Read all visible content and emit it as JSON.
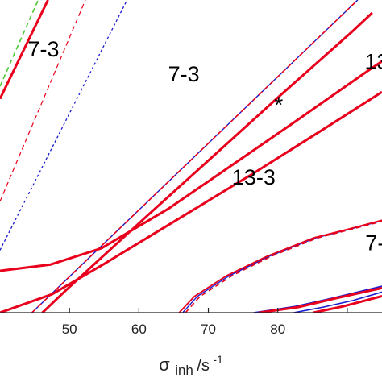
{
  "chart_data": {
    "type": "line",
    "xlabel": {
      "base": "σ",
      "subscript": "inh",
      "unit": " /s",
      "exponent": "-1"
    },
    "xlim": [
      40,
      95
    ],
    "ylim": [
      0,
      1
    ],
    "xticks": [
      50,
      60,
      70,
      80,
      90
    ],
    "xtick_labels": [
      "50",
      "60",
      "70",
      "80",
      ""
    ],
    "grid": false,
    "region_labels": [
      {
        "text": "7-3",
        "x": 44.0,
        "y": 0.82
      },
      {
        "text": "7-3",
        "x": 64.2,
        "y": 0.74
      },
      {
        "text": "13",
        "x": 92.5,
        "y": 0.78
      },
      {
        "text": "*",
        "x": 79.5,
        "y": 0.64
      },
      {
        "text": "13-3",
        "x": 73.4,
        "y": 0.41
      },
      {
        "text": "7-",
        "x": 92.6,
        "y": 0.2
      }
    ],
    "colors": {
      "red": "#e8001c",
      "blue": "#1a1ad0",
      "green": "#4cc832"
    },
    "series": [
      {
        "color": "#e8001c",
        "style": "solid",
        "width": 3,
        "points": [
          [
            40,
            0.684
          ],
          [
            46.9,
            1.0
          ]
        ]
      },
      {
        "color": "#4cc832",
        "style": "dashed",
        "width": 1.6,
        "points": [
          [
            40,
            0.724
          ],
          [
            45.5,
            1.0
          ]
        ]
      },
      {
        "color": "#e8001c",
        "style": "dashed",
        "width": 1.2,
        "points": [
          [
            40,
            0.356
          ],
          [
            52.3,
            1.0
          ]
        ]
      },
      {
        "color": "#1a1ad0",
        "style": "dotted",
        "width": 1.3,
        "points": [
          [
            40,
            0.2
          ],
          [
            58.3,
            1.0
          ]
        ]
      },
      {
        "color": "#1a1ad0",
        "style": "solid",
        "width": 1.4,
        "points": [
          [
            44.6,
            0.0
          ],
          [
            91.5,
            1.0
          ]
        ]
      },
      {
        "color": "#e8001c",
        "style": "dashed",
        "width": 1.6,
        "points": [
          [
            44.6,
            0.0
          ],
          [
            91.5,
            1.0
          ]
        ]
      },
      {
        "color": "#e8001c",
        "style": "solid",
        "width": 3,
        "points": [
          [
            40,
            0.0
          ],
          [
            47.5,
            0.059
          ],
          [
            54.9,
            0.155
          ],
          [
            65.1,
            0.292
          ],
          [
            76.5,
            0.446
          ],
          [
            86.6,
            0.587
          ],
          [
            95,
            0.706
          ]
        ]
      },
      {
        "color": "#e8001c",
        "style": "solid",
        "width": 3,
        "points": [
          [
            40,
            0.134
          ],
          [
            47.3,
            0.154
          ],
          [
            54.6,
            0.206
          ],
          [
            64.2,
            0.332
          ],
          [
            72.5,
            0.458
          ],
          [
            82.3,
            0.608
          ],
          [
            92.8,
            0.771
          ],
          [
            95,
            0.804
          ]
        ]
      },
      {
        "color": "#e8001c",
        "style": "solid",
        "width": 3,
        "points": [
          [
            46.1,
            0.0
          ],
          [
            49.5,
            0.072
          ],
          [
            54.6,
            0.176
          ],
          [
            61.2,
            0.31
          ],
          [
            70.5,
            0.497
          ],
          [
            80.4,
            0.696
          ],
          [
            90.6,
            0.897
          ],
          [
            93.6,
            0.959
          ]
        ]
      },
      {
        "color": "#1a1ad0",
        "style": "solid",
        "width": 1.4,
        "points": [
          [
            66.3,
            0.0
          ],
          [
            68.4,
            0.052
          ],
          [
            73.0,
            0.118
          ],
          [
            78.7,
            0.18
          ],
          [
            85.4,
            0.239
          ],
          [
            90.6,
            0.268
          ],
          [
            95,
            0.294
          ]
        ]
      },
      {
        "color": "#e8001c",
        "style": "dashed",
        "width": 1.6,
        "points": [
          [
            66.7,
            0.0
          ],
          [
            68.8,
            0.052
          ],
          [
            73.4,
            0.118
          ],
          [
            79.0,
            0.18
          ],
          [
            85.7,
            0.239
          ],
          [
            90.8,
            0.268
          ],
          [
            95,
            0.292
          ]
        ]
      },
      {
        "color": "#e8001c",
        "style": "solid",
        "width": 1.8,
        "points": [
          [
            65.8,
            0.0
          ],
          [
            68.0,
            0.052
          ],
          [
            72.6,
            0.118
          ],
          [
            78.4,
            0.18
          ],
          [
            85.1,
            0.239
          ],
          [
            90.3,
            0.268
          ],
          [
            95,
            0.296
          ]
        ]
      },
      {
        "color": "#1a1ad0",
        "style": "solid",
        "width": 1.6,
        "points": [
          [
            76.5,
            0.0
          ],
          [
            82.5,
            0.02
          ],
          [
            87.7,
            0.046
          ],
          [
            95,
            0.085
          ]
        ]
      },
      {
        "color": "#e8001c",
        "style": "solid",
        "width": 3,
        "points": [
          [
            77.3,
            0.0
          ],
          [
            83.0,
            0.018
          ],
          [
            88.3,
            0.046
          ],
          [
            95,
            0.079
          ]
        ]
      },
      {
        "color": "#1a1ad0",
        "style": "solid",
        "width": 1.6,
        "points": [
          [
            82.3,
            0.0
          ],
          [
            86.6,
            0.018
          ],
          [
            90.8,
            0.039
          ],
          [
            95,
            0.066
          ]
        ]
      },
      {
        "color": "#e8001c",
        "style": "solid",
        "width": 3,
        "points": [
          [
            85.1,
            0.0
          ],
          [
            89.4,
            0.02
          ],
          [
            95,
            0.053
          ]
        ]
      }
    ]
  }
}
